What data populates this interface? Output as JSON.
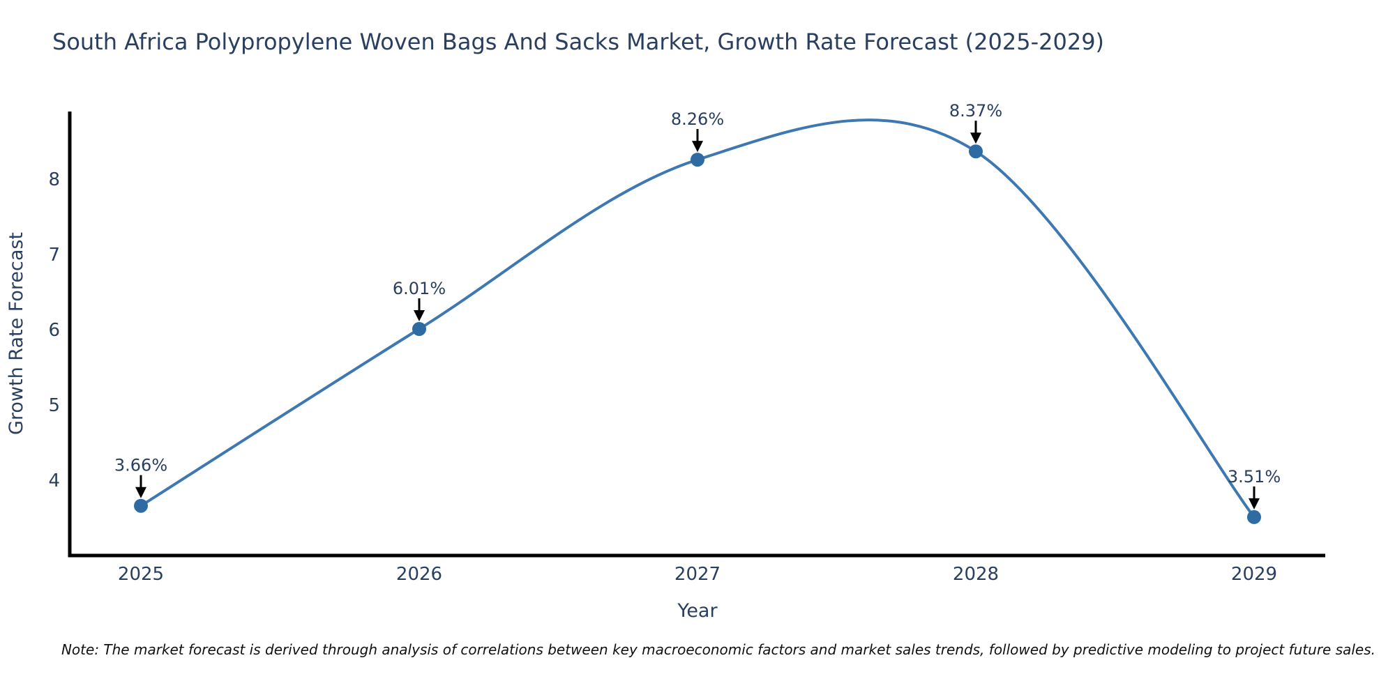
{
  "page": {
    "title": "South Africa Polypropylene Woven Bags And Sacks Market, Growth Rate Forecast (2025-2029)",
    "note": "Note: The market forecast is derived through analysis of correlations between key macroeconomic factors and market sales trends, followed by predictive modeling to project future sales."
  },
  "chart_data": {
    "type": "line",
    "title": "South Africa Polypropylene Woven Bags And Sacks Market, Growth Rate Forecast (2025-2029)",
    "categories": [
      "2025",
      "2026",
      "2027",
      "2028",
      "2029"
    ],
    "values": [
      3.66,
      6.01,
      8.26,
      8.37,
      3.51
    ],
    "point_labels": [
      "3.66%",
      "6.01%",
      "8.26%",
      "8.37%",
      "3.51%"
    ],
    "xlabel": "Year",
    "ylabel": "Growth Rate Forecast",
    "yticks": [
      4,
      5,
      6,
      7,
      8
    ],
    "ylim": [
      3.0,
      8.9
    ],
    "line_shape": "spline",
    "grid": false,
    "legend_position": "none",
    "colors": {
      "line": "#3d78b2",
      "marker": "#2f6ba3",
      "axis": "#000000",
      "text": "#2a3f5f",
      "arrow": "#000000",
      "note_text": "#111111",
      "background": "#ffffff"
    }
  }
}
